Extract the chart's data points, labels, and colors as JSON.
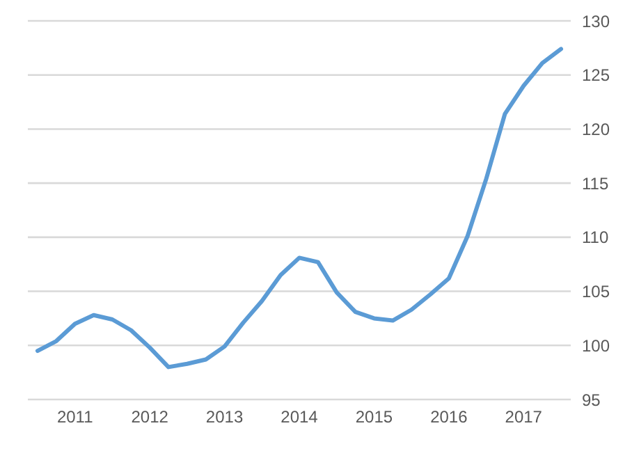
{
  "chart_data": {
    "type": "line",
    "categories": [
      null,
      null,
      "2011",
      null,
      null,
      null,
      "2012",
      null,
      null,
      null,
      "2013",
      null,
      null,
      null,
      "2014",
      null,
      null,
      null,
      "2015",
      null,
      null,
      null,
      "2016",
      null,
      null,
      null,
      "2017",
      null,
      null
    ],
    "series": [
      {
        "color": "#5b9bd5",
        "values": [
          99.5,
          100.4,
          102.0,
          102.8,
          102.4,
          101.4,
          99.8,
          98.0,
          98.3,
          98.7,
          99.9,
          102.1,
          104.1,
          106.5,
          108.1,
          107.7,
          104.9,
          103.1,
          102.5,
          102.3,
          103.3,
          104.7,
          106.2,
          110.1,
          115.4,
          121.4,
          124.0,
          126.1,
          127.4
        ]
      }
    ],
    "ylim": [
      95,
      130
    ],
    "yticks": [
      95,
      100,
      105,
      110,
      115,
      120,
      125,
      130
    ],
    "grid": "y",
    "marker": "none",
    "line_style": "solid"
  }
}
